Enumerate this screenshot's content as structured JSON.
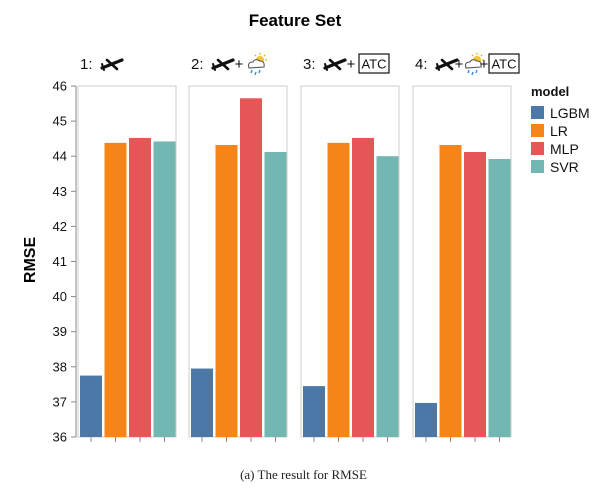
{
  "chart_data": {
    "type": "bar",
    "title": "Feature Set",
    "ylabel": "RMSE",
    "ylim": [
      36,
      46
    ],
    "yticks": [
      36,
      37,
      38,
      39,
      40,
      41,
      42,
      43,
      44,
      45,
      46
    ],
    "legend": {
      "title": "model",
      "placement": "right",
      "entries": [
        {
          "name": "LGBM",
          "color": "#4c78a8"
        },
        {
          "name": "LR",
          "color": "#f58518"
        },
        {
          "name": "MLP",
          "color": "#e45756"
        },
        {
          "name": "SVR",
          "color": "#72b7b2"
        }
      ]
    },
    "categories": [
      "LGBM",
      "LR",
      "MLP",
      "SVR"
    ],
    "facets": [
      {
        "label": "1:",
        "icons": [
          "plane-icon"
        ],
        "values": [
          37.75,
          44.38,
          44.52,
          44.42
        ]
      },
      {
        "label": "2:",
        "icons": [
          "plane-icon",
          "plus",
          "weather-icon"
        ],
        "values": [
          37.95,
          44.32,
          45.65,
          44.12
        ]
      },
      {
        "label": "3:",
        "icons": [
          "plane-icon",
          "plus",
          "atc-box"
        ],
        "values": [
          37.45,
          44.38,
          44.52,
          44.0
        ]
      },
      {
        "label": "4:",
        "icons": [
          "plane-icon",
          "plus",
          "weather-icon",
          "plus",
          "atc-box"
        ],
        "values": [
          36.97,
          44.32,
          44.12,
          43.92
        ]
      }
    ],
    "atc_label": "ATC",
    "plus_label": "+"
  },
  "caption": "(a)  The result for RMSE"
}
